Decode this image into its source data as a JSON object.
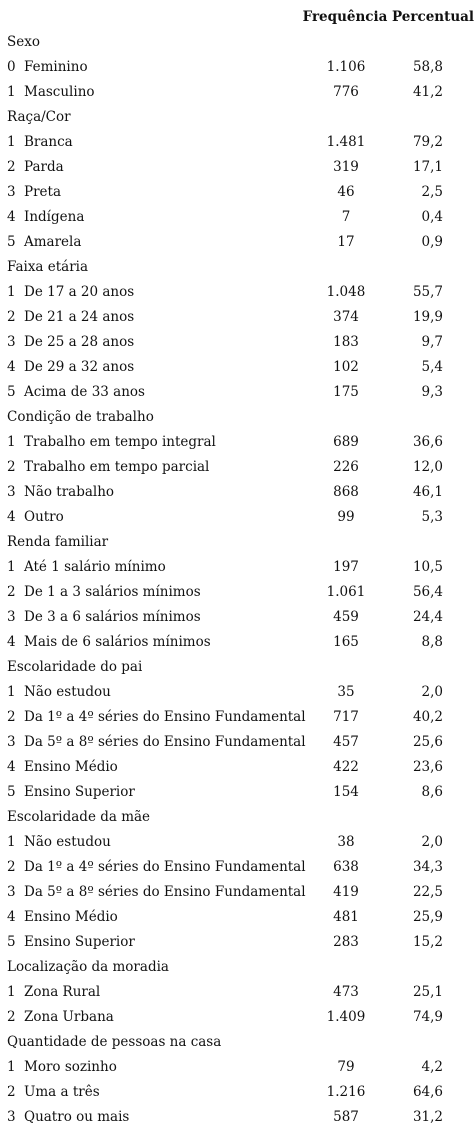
{
  "header": {
    "freq": "Frequência",
    "pct": "Percentual"
  },
  "sections": [
    {
      "title": "Sexo",
      "rows": [
        {
          "code": "0",
          "label": "Feminino",
          "freq": "1.106",
          "pct": "58,8"
        },
        {
          "code": "1",
          "label": "Masculino",
          "freq": "776",
          "pct": "41,2"
        }
      ]
    },
    {
      "title": "Raça/Cor",
      "rows": [
        {
          "code": "1",
          "label": "Branca",
          "freq": "1.481",
          "pct": "79,2"
        },
        {
          "code": "2",
          "label": "Parda",
          "freq": "319",
          "pct": "17,1"
        },
        {
          "code": "3",
          "label": "Preta",
          "freq": "46",
          "pct": "2,5"
        },
        {
          "code": "4",
          "label": "Indígena",
          "freq": "7",
          "pct": "0,4"
        },
        {
          "code": "5",
          "label": "Amarela",
          "freq": "17",
          "pct": "0,9"
        }
      ]
    },
    {
      "title": "Faixa etária",
      "rows": [
        {
          "code": "1",
          "label": "De 17 a 20 anos",
          "freq": "1.048",
          "pct": "55,7"
        },
        {
          "code": "2",
          "label": "De 21 a 24 anos",
          "freq": "374",
          "pct": "19,9"
        },
        {
          "code": "3",
          "label": "De 25 a 28 anos",
          "freq": "183",
          "pct": "9,7"
        },
        {
          "code": "4",
          "label": "De 29 a 32 anos",
          "freq": "102",
          "pct": "5,4"
        },
        {
          "code": "5",
          "label": "Acima de 33 anos",
          "freq": "175",
          "pct": "9,3"
        }
      ]
    },
    {
      "title": "Condição de trabalho",
      "rows": [
        {
          "code": "1",
          "label": "Trabalho em tempo integral",
          "freq": "689",
          "pct": "36,6"
        },
        {
          "code": "2",
          "label": "Trabalho em tempo parcial",
          "freq": "226",
          "pct": "12,0"
        },
        {
          "code": "3",
          "label": "Não trabalho",
          "freq": "868",
          "pct": "46,1"
        },
        {
          "code": "4",
          "label": "Outro",
          "freq": "99",
          "pct": "5,3"
        }
      ]
    },
    {
      "title": "Renda familiar",
      "rows": [
        {
          "code": "1",
          "label": "Até 1 salário mínimo",
          "freq": "197",
          "pct": "10,5"
        },
        {
          "code": "2",
          "label": "De 1 a 3 salários mínimos",
          "freq": "1.061",
          "pct": "56,4"
        },
        {
          "code": "3",
          "label": "De 3 a 6 salários mínimos",
          "freq": "459",
          "pct": "24,4"
        },
        {
          "code": "4",
          "label": "Mais de 6 salários mínimos",
          "freq": "165",
          "pct": "8,8"
        }
      ]
    },
    {
      "title": "Escolaridade do pai",
      "rows": [
        {
          "code": "1",
          "label": "Não estudou",
          "freq": "35",
          "pct": "2,0"
        },
        {
          "code": "2",
          "label": "Da 1º a 4º séries do Ensino Fundamental",
          "freq": "717",
          "pct": "40,2"
        },
        {
          "code": "3",
          "label": "Da 5º a 8º séries do Ensino Fundamental",
          "freq": "457",
          "pct": "25,6"
        },
        {
          "code": "4",
          "label": "Ensino Médio",
          "freq": "422",
          "pct": "23,6"
        },
        {
          "code": "5",
          "label": "Ensino Superior",
          "freq": "154",
          "pct": "8,6"
        }
      ]
    },
    {
      "title": "Escolaridade da mãe",
      "rows": [
        {
          "code": "1",
          "label": "Não estudou",
          "freq": "38",
          "pct": "2,0"
        },
        {
          "code": "2",
          "label": "Da 1º a 4º séries do Ensino Fundamental",
          "freq": "638",
          "pct": "34,3"
        },
        {
          "code": "3",
          "label": "Da 5º a 8º séries do Ensino Fundamental",
          "freq": "419",
          "pct": "22,5"
        },
        {
          "code": "4",
          "label": "Ensino Médio",
          "freq": "481",
          "pct": "25,9"
        },
        {
          "code": "5",
          "label": "Ensino Superior",
          "freq": "283",
          "pct": "15,2"
        }
      ]
    },
    {
      "title": "Localização da moradia",
      "rows": [
        {
          "code": "1",
          "label": "Zona Rural",
          "freq": "473",
          "pct": "25,1"
        },
        {
          "code": "2",
          "label": "Zona Urbana",
          "freq": "1.409",
          "pct": "74,9"
        }
      ]
    },
    {
      "title": "Quantidade de pessoas na casa",
      "rows": [
        {
          "code": "1",
          "label": "Moro sozinho",
          "freq": "79",
          "pct": "4,2"
        },
        {
          "code": "2",
          "label": "Uma a três",
          "freq": "1.216",
          "pct": "64,6"
        },
        {
          "code": "3",
          "label": "Quatro ou mais",
          "freq": "587",
          "pct": "31,2"
        }
      ]
    }
  ]
}
